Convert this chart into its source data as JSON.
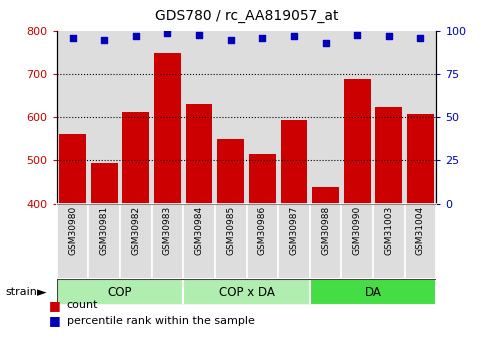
{
  "title": "GDS780 / rc_AA819057_at",
  "samples": [
    "GSM30980",
    "GSM30981",
    "GSM30982",
    "GSM30983",
    "GSM30984",
    "GSM30985",
    "GSM30986",
    "GSM30987",
    "GSM30988",
    "GSM30990",
    "GSM31003",
    "GSM31004"
  ],
  "counts": [
    562,
    494,
    612,
    750,
    630,
    550,
    514,
    594,
    438,
    688,
    625,
    608
  ],
  "percentiles": [
    96,
    95,
    97,
    99,
    98,
    95,
    96,
    97,
    93,
    98,
    97,
    96
  ],
  "groups": [
    {
      "label": "COP",
      "start": 0,
      "end": 4,
      "color": "#b0eeb0"
    },
    {
      "label": "COP x DA",
      "start": 4,
      "end": 8,
      "color": "#b0eeb0"
    },
    {
      "label": "DA",
      "start": 8,
      "end": 12,
      "color": "#44dd44"
    }
  ],
  "ylim_left": [
    400,
    800
  ],
  "ylim_right": [
    0,
    100
  ],
  "yticks_left": [
    400,
    500,
    600,
    700,
    800
  ],
  "yticks_right": [
    0,
    25,
    50,
    75,
    100
  ],
  "bar_color": "#cc0000",
  "dot_color": "#0000bb",
  "bar_bottom": 400,
  "grid_yticks": [
    500,
    600,
    700
  ],
  "legend_count_label": "count",
  "legend_pct_label": "percentile rank within the sample",
  "tick_color_left": "#cc0000",
  "tick_color_right": "#0000bb",
  "col_sep_color": "#888888",
  "sample_bg": "#dddddd"
}
